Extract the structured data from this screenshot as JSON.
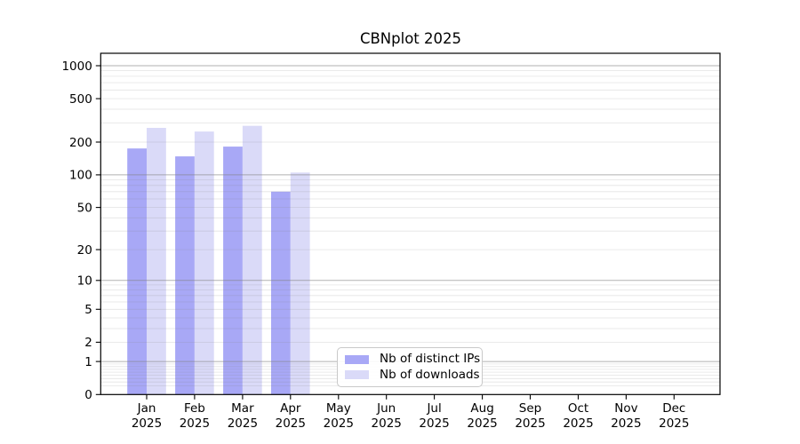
{
  "figure": {
    "background": "#ffffff"
  },
  "chart_data": {
    "type": "bar",
    "title": "CBNplot 2025",
    "categories": [
      "Jan",
      "Feb",
      "Mar",
      "Apr",
      "May",
      "Jun",
      "Jul",
      "Aug",
      "Sep",
      "Oct",
      "Nov",
      "Dec"
    ],
    "category_year": "2025",
    "series": [
      {
        "name": "Nb of distinct IPs",
        "color": "#a8a8f6",
        "values": [
          175,
          148,
          182,
          70,
          null,
          null,
          null,
          null,
          null,
          null,
          null,
          null
        ]
      },
      {
        "name": "Nb of downloads",
        "color": "#dadaf8",
        "values": [
          270,
          250,
          282,
          105,
          null,
          null,
          null,
          null,
          null,
          null,
          null,
          null
        ]
      }
    ],
    "y_axis": {
      "scale": "log1p",
      "tick_values": [
        0,
        1,
        2,
        5,
        10,
        20,
        50,
        100,
        200,
        500,
        1000
      ],
      "major_gridline_values": [
        1,
        10,
        100,
        1000
      ],
      "ylim": [
        0,
        1000
      ]
    },
    "x_axis": {
      "label_lines": 2
    },
    "legend": {
      "position": "bottom-center-left",
      "entries": [
        "Nb of distinct IPs",
        "Nb of downloads"
      ]
    },
    "colors": {
      "spine": "#000000",
      "tick_text": "#000000",
      "major_grid": "rgba(130,130,130,0.62)",
      "minor_grid": "rgba(130,130,130,0.22)"
    }
  }
}
